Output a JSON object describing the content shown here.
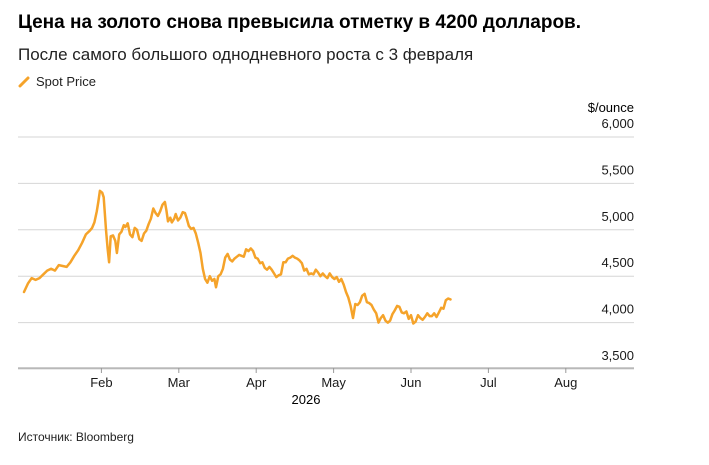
{
  "title": "Цена на золото снова превысила отметку в 4200 долларов.",
  "subtitle": "После самого большого однодневного роста с 3 февраля",
  "source": "Источник: Bloomberg",
  "colors": {
    "series": "#f5a32a",
    "grid": "#d6d6d6",
    "axis": "#999999",
    "text": "#1a1a1a"
  },
  "chart_data": {
    "type": "line",
    "x_axis": {
      "unit": "month",
      "range": [
        0,
        7.25
      ],
      "ticks": [
        {
          "x": 1,
          "label": "Feb"
        },
        {
          "x": 2,
          "label": "Mar"
        },
        {
          "x": 3,
          "label": "Apr"
        },
        {
          "x": 4,
          "label": "May"
        },
        {
          "x": 5,
          "label": "Jun"
        },
        {
          "x": 6,
          "label": "Jul"
        },
        {
          "x": 7,
          "label": "Aug"
        }
      ],
      "year_label": "2026"
    },
    "y_axis": {
      "unit_label": "$/ounce",
      "range": [
        3500,
        6000
      ],
      "position": "right",
      "ticks": [
        {
          "value": 3500,
          "label": "3,500"
        },
        {
          "value": 4000,
          "label": "4,000"
        },
        {
          "value": 4500,
          "label": "4,500"
        },
        {
          "value": 5000,
          "label": "5,000"
        },
        {
          "value": 5500,
          "label": "5,500"
        },
        {
          "value": 6000,
          "label": "6,000"
        }
      ]
    },
    "grid": true,
    "legend": "top-left",
    "series": [
      {
        "name": "Spot Price",
        "points": [
          [
            0.0,
            4330
          ],
          [
            0.05,
            4420
          ],
          [
            0.1,
            4480
          ],
          [
            0.15,
            4460
          ],
          [
            0.2,
            4480
          ],
          [
            0.25,
            4520
          ],
          [
            0.3,
            4560
          ],
          [
            0.35,
            4580
          ],
          [
            0.4,
            4560
          ],
          [
            0.45,
            4620
          ],
          [
            0.5,
            4610
          ],
          [
            0.55,
            4600
          ],
          [
            0.6,
            4650
          ],
          [
            0.65,
            4720
          ],
          [
            0.7,
            4780
          ],
          [
            0.75,
            4860
          ],
          [
            0.8,
            4950
          ],
          [
            0.85,
            4990
          ],
          [
            0.88,
            5020
          ],
          [
            0.91,
            5080
          ],
          [
            0.94,
            5200
          ],
          [
            0.96,
            5300
          ],
          [
            0.98,
            5420
          ],
          [
            1.01,
            5400
          ],
          [
            1.03,
            5350
          ],
          [
            1.06,
            5000
          ],
          [
            1.08,
            4800
          ],
          [
            1.1,
            4650
          ],
          [
            1.12,
            4930
          ],
          [
            1.15,
            4940
          ],
          [
            1.18,
            4880
          ],
          [
            1.2,
            4750
          ],
          [
            1.23,
            4950
          ],
          [
            1.26,
            4980
          ],
          [
            1.29,
            5050
          ],
          [
            1.31,
            5030
          ],
          [
            1.34,
            5070
          ],
          [
            1.37,
            4950
          ],
          [
            1.4,
            4920
          ],
          [
            1.43,
            5020
          ],
          [
            1.46,
            5000
          ],
          [
            1.49,
            4900
          ],
          [
            1.52,
            4880
          ],
          [
            1.55,
            4960
          ],
          [
            1.58,
            4990
          ],
          [
            1.61,
            5060
          ],
          [
            1.64,
            5120
          ],
          [
            1.67,
            5230
          ],
          [
            1.7,
            5180
          ],
          [
            1.73,
            5150
          ],
          [
            1.76,
            5200
          ],
          [
            1.79,
            5270
          ],
          [
            1.82,
            5300
          ],
          [
            1.84,
            5210
          ],
          [
            1.86,
            5090
          ],
          [
            1.89,
            5130
          ],
          [
            1.91,
            5080
          ],
          [
            1.94,
            5120
          ],
          [
            1.96,
            5170
          ],
          [
            1.99,
            5100
          ],
          [
            2.02,
            5130
          ],
          [
            2.05,
            5190
          ],
          [
            2.08,
            5180
          ],
          [
            2.1,
            5130
          ],
          [
            2.13,
            5040
          ],
          [
            2.16,
            5010
          ],
          [
            2.19,
            5020
          ],
          [
            2.22,
            4960
          ],
          [
            2.25,
            4860
          ],
          [
            2.28,
            4750
          ],
          [
            2.31,
            4580
          ],
          [
            2.34,
            4470
          ],
          [
            2.37,
            4430
          ],
          [
            2.4,
            4500
          ],
          [
            2.43,
            4450
          ],
          [
            2.46,
            4470
          ],
          [
            2.48,
            4380
          ],
          [
            2.51,
            4500
          ],
          [
            2.54,
            4520
          ],
          [
            2.57,
            4580
          ],
          [
            2.6,
            4700
          ],
          [
            2.63,
            4740
          ],
          [
            2.66,
            4680
          ],
          [
            2.69,
            4660
          ],
          [
            2.72,
            4690
          ],
          [
            2.75,
            4710
          ],
          [
            2.78,
            4730
          ],
          [
            2.81,
            4720
          ],
          [
            2.84,
            4710
          ],
          [
            2.87,
            4790
          ],
          [
            2.9,
            4770
          ],
          [
            2.93,
            4800
          ],
          [
            2.96,
            4770
          ],
          [
            2.99,
            4700
          ],
          [
            3.02,
            4690
          ],
          [
            3.05,
            4640
          ],
          [
            3.08,
            4650
          ],
          [
            3.11,
            4590
          ],
          [
            3.14,
            4570
          ],
          [
            3.17,
            4600
          ],
          [
            3.2,
            4570
          ],
          [
            3.23,
            4530
          ],
          [
            3.26,
            4490
          ],
          [
            3.29,
            4510
          ],
          [
            3.32,
            4520
          ],
          [
            3.35,
            4650
          ],
          [
            3.38,
            4650
          ],
          [
            3.41,
            4690
          ],
          [
            3.44,
            4700
          ],
          [
            3.47,
            4720
          ],
          [
            3.5,
            4700
          ],
          [
            3.53,
            4690
          ],
          [
            3.56,
            4670
          ],
          [
            3.59,
            4640
          ],
          [
            3.62,
            4560
          ],
          [
            3.65,
            4580
          ],
          [
            3.68,
            4520
          ],
          [
            3.71,
            4530
          ],
          [
            3.74,
            4520
          ],
          [
            3.77,
            4570
          ],
          [
            3.8,
            4540
          ],
          [
            3.83,
            4500
          ],
          [
            3.86,
            4530
          ],
          [
            3.89,
            4500
          ],
          [
            3.92,
            4480
          ],
          [
            3.95,
            4530
          ],
          [
            3.98,
            4490
          ],
          [
            4.01,
            4470
          ],
          [
            4.04,
            4490
          ],
          [
            4.07,
            4440
          ],
          [
            4.1,
            4470
          ],
          [
            4.13,
            4410
          ],
          [
            4.16,
            4330
          ],
          [
            4.19,
            4270
          ],
          [
            4.22,
            4180
          ],
          [
            4.25,
            4050
          ],
          [
            4.28,
            4200
          ],
          [
            4.31,
            4190
          ],
          [
            4.34,
            4220
          ],
          [
            4.37,
            4290
          ],
          [
            4.4,
            4310
          ],
          [
            4.43,
            4220
          ],
          [
            4.46,
            4210
          ],
          [
            4.49,
            4190
          ],
          [
            4.52,
            4140
          ],
          [
            4.55,
            4100
          ],
          [
            4.58,
            4000
          ],
          [
            4.61,
            4050
          ],
          [
            4.64,
            4080
          ],
          [
            4.67,
            4020
          ],
          [
            4.7,
            4000
          ],
          [
            4.73,
            4020
          ],
          [
            4.76,
            4090
          ],
          [
            4.79,
            4130
          ],
          [
            4.82,
            4180
          ],
          [
            4.85,
            4170
          ],
          [
            4.88,
            4110
          ],
          [
            4.91,
            4100
          ],
          [
            4.94,
            4120
          ],
          [
            4.97,
            4040
          ],
          [
            5.0,
            4080
          ],
          [
            5.03,
            3990
          ],
          [
            5.06,
            4010
          ],
          [
            5.09,
            4080
          ],
          [
            5.12,
            4050
          ],
          [
            5.15,
            4030
          ],
          [
            5.18,
            4060
          ],
          [
            5.21,
            4100
          ],
          [
            5.24,
            4070
          ],
          [
            5.27,
            4070
          ],
          [
            5.3,
            4100
          ],
          [
            5.33,
            4060
          ],
          [
            5.36,
            4110
          ],
          [
            5.39,
            4160
          ],
          [
            5.42,
            4150
          ],
          [
            5.45,
            4240
          ],
          [
            5.48,
            4260
          ],
          [
            5.51,
            4250
          ]
        ]
      }
    ]
  },
  "legend_items": [
    {
      "label": "Spot Price"
    }
  ]
}
